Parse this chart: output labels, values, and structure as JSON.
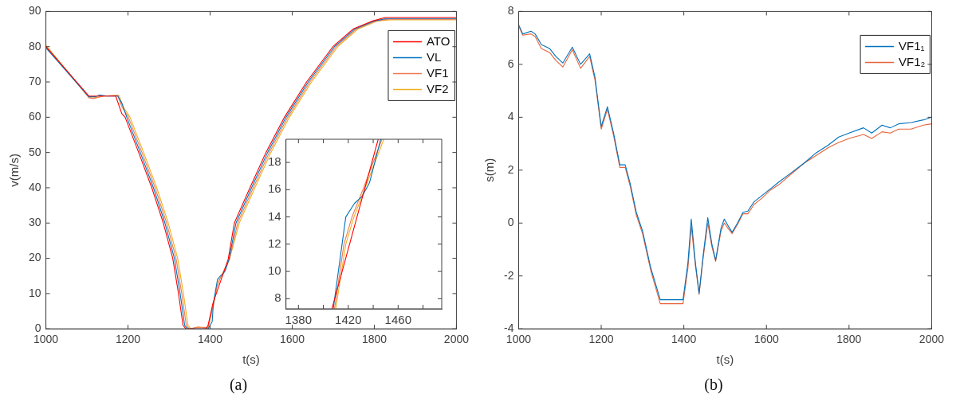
{
  "chart_data": [
    {
      "type": "line",
      "xlabel": "t(s)",
      "ylabel": "v(m/s)",
      "xlim": [
        1000,
        2000
      ],
      "xticks": [
        1000,
        1200,
        1400,
        1600,
        1800,
        2000
      ],
      "ylim": [
        0,
        90
      ],
      "yticks": [
        0,
        10,
        20,
        30,
        40,
        50,
        60,
        70,
        80,
        90
      ],
      "grid": false,
      "legend": "top right",
      "marker": "none",
      "line_style": "solid",
      "annotations": [
        "(a)"
      ],
      "series": [
        {
          "name": "ATO",
          "color": "#ff0000",
          "x": [
            1000,
            1105,
            1170,
            1185,
            1193,
            1226,
            1258,
            1286,
            1309,
            1323,
            1334,
            1341,
            1390,
            1395,
            1407,
            1444,
            1459,
            1497,
            1536,
            1581,
            1635,
            1699,
            1748,
            1796,
            1826,
            2000
          ],
          "values": [
            80,
            66,
            66,
            61,
            60,
            50,
            40,
            30,
            20,
            10,
            1,
            0,
            0,
            1,
            7.3,
            19.7,
            30,
            40,
            50,
            60,
            70,
            80,
            85,
            87.3,
            88.3,
            88.3
          ]
        },
        {
          "name": "VL",
          "color": "#0072bd",
          "x": [
            1000,
            1105,
            1120,
            1130,
            1150,
            1175,
            1185,
            1197,
            1230,
            1262,
            1290,
            1313,
            1327,
            1338,
            1345,
            1395,
            1405,
            1408,
            1415,
            1418,
            1425,
            1431,
            1437,
            1446,
            1463,
            1501,
            1540,
            1585,
            1639,
            1703,
            1752,
            1800,
            1830,
            2000
          ],
          "values": [
            79.7,
            65.8,
            65.8,
            66.3,
            66,
            66,
            64,
            60,
            50,
            40,
            30,
            20,
            10,
            1,
            0,
            0,
            2,
            7.3,
            12,
            14,
            15,
            15.5,
            16.5,
            19.7,
            30,
            40,
            50,
            60,
            70,
            80,
            85,
            87.3,
            88,
            88
          ]
        },
        {
          "name": "VF1",
          "color": "#f07850",
          "x": [
            1000,
            1105,
            1115,
            1140,
            1175,
            1185,
            1201,
            1234,
            1266,
            1294,
            1317,
            1331,
            1342,
            1349,
            1370,
            1395,
            1409,
            1416.5,
            1423,
            1431.7,
            1447,
            1467,
            1505,
            1544,
            1589,
            1643,
            1707,
            1756,
            1804,
            1834,
            2000
          ],
          "values": [
            80.2,
            65.5,
            65.3,
            66,
            66.2,
            63,
            60,
            50,
            40,
            30,
            20,
            10,
            1,
            0,
            0.5,
            0.3,
            7.3,
            12,
            14,
            16,
            19.7,
            30,
            40,
            50,
            60,
            70,
            80,
            85,
            87.3,
            87.8,
            87.8
          ]
        },
        {
          "name": "VF2",
          "color": "#edb120",
          "x": [
            1000,
            1105,
            1115,
            1140,
            1178,
            1188,
            1205,
            1238,
            1270,
            1298,
            1321,
            1335,
            1346,
            1353,
            1370,
            1395,
            1409,
            1416.5,
            1423,
            1431.7,
            1447,
            1471,
            1509,
            1548,
            1593,
            1647,
            1711,
            1760,
            1808,
            1838,
            2000
          ],
          "values": [
            80.4,
            65.6,
            65.4,
            66,
            66.2,
            63,
            60,
            50,
            40,
            30,
            20,
            10,
            1,
            0,
            0.5,
            0.3,
            7.3,
            12,
            14,
            16,
            19.7,
            30,
            40,
            50,
            60,
            70,
            80,
            85,
            87.3,
            87.6,
            87.6
          ]
        }
      ]
    },
    {
      "type": "line",
      "xlim": [
        1370,
        1495
      ],
      "xticks": [
        1380,
        {
          "value": 1400,
          "label": null
        },
        1420,
        {
          "value": 1440,
          "label": null
        },
        1460,
        {
          "value": 1480,
          "label": null
        }
      ],
      "ylim": [
        7.26,
        19.7
      ],
      "yticks": [
        8,
        10,
        12,
        14,
        16,
        18
      ],
      "grid": false,
      "marker": "none",
      "line_style": "solid",
      "series": [
        {
          "color": "#ff0000",
          "x": [
            1407,
            1444
          ],
          "values": [
            7.3,
            19.7
          ]
        },
        {
          "color": "#0072bd",
          "x": [
            1408,
            1415,
            1418,
            1425,
            1431,
            1437,
            1446
          ],
          "values": [
            7.3,
            12,
            14,
            15,
            15.5,
            16.5,
            19.7
          ]
        },
        {
          "color": "#f07850",
          "x": [
            1409,
            1416.5,
            1423,
            1431.7,
            1447
          ],
          "values": [
            7.3,
            12,
            14,
            16,
            19.7
          ]
        },
        {
          "color": "#edb120",
          "x": [
            1410,
            1418,
            1424.5,
            1433,
            1448.5
          ],
          "values": [
            7.3,
            12,
            14,
            16,
            19.7
          ]
        }
      ]
    },
    {
      "type": "line",
      "xlabel": "t(s)",
      "ylabel": "s(m)",
      "xlim": [
        1000,
        2000
      ],
      "xticks": [
        1000,
        1200,
        1400,
        1600,
        1800,
        2000
      ],
      "ylim": [
        -4,
        8
      ],
      "yticks": [
        -4,
        -2,
        0,
        2,
        4,
        6,
        8
      ],
      "grid": false,
      "legend": "top right",
      "marker": "none",
      "line_style": "solid",
      "annotations": [
        "(b)"
      ],
      "series": [
        {
          "name": "VF1₁",
          "color": "#0072bd",
          "x": [
            1000,
            1010,
            1030,
            1040,
            1055,
            1075,
            1090,
            1107,
            1130,
            1150,
            1172,
            1185,
            1200,
            1215,
            1230,
            1245,
            1258,
            1270,
            1285,
            1300,
            1320,
            1343,
            1398,
            1410,
            1418,
            1428,
            1437,
            1447,
            1458,
            1468,
            1477,
            1490,
            1498,
            1507,
            1517,
            1530,
            1543,
            1555,
            1570,
            1590,
            1610,
            1630,
            1660,
            1690,
            1720,
            1750,
            1775,
            1800,
            1835,
            1855,
            1880,
            1900,
            1920,
            1950,
            1980,
            2000
          ],
          "values": [
            7.5,
            7.15,
            7.25,
            7.15,
            6.75,
            6.6,
            6.3,
            6.05,
            6.65,
            6.0,
            6.4,
            5.5,
            3.65,
            4.4,
            3.4,
            2.2,
            2.2,
            1.5,
            0.4,
            -0.3,
            -1.7,
            -2.9,
            -2.9,
            -1.5,
            0.15,
            -1.5,
            -2.65,
            -1.2,
            0.2,
            -0.8,
            -1.4,
            -0.2,
            0.15,
            -0.1,
            -0.35,
            0.0,
            0.4,
            0.45,
            0.8,
            1.05,
            1.3,
            1.55,
            1.9,
            2.25,
            2.65,
            2.95,
            3.25,
            3.4,
            3.6,
            3.4,
            3.7,
            3.6,
            3.75,
            3.8,
            3.9,
            4.0
          ]
        },
        {
          "name": "VF1₂",
          "color": "#e8643c",
          "x": [
            1000,
            1010,
            1030,
            1040,
            1055,
            1075,
            1090,
            1107,
            1130,
            1150,
            1172,
            1185,
            1200,
            1215,
            1230,
            1245,
            1258,
            1270,
            1285,
            1300,
            1320,
            1343,
            1398,
            1410,
            1418,
            1428,
            1437,
            1447,
            1458,
            1468,
            1477,
            1490,
            1498,
            1507,
            1517,
            1530,
            1543,
            1555,
            1570,
            1590,
            1610,
            1630,
            1660,
            1690,
            1720,
            1750,
            1775,
            1800,
            1835,
            1855,
            1880,
            1900,
            1920,
            1950,
            1980,
            2000
          ],
          "values": [
            7.45,
            7.1,
            7.15,
            7.05,
            6.6,
            6.45,
            6.15,
            5.9,
            6.55,
            5.85,
            6.3,
            5.4,
            3.55,
            4.3,
            3.3,
            2.1,
            2.1,
            1.4,
            0.3,
            -0.4,
            -1.8,
            -3.05,
            -3.05,
            -1.7,
            -0.1,
            -1.6,
            -2.7,
            -1.3,
            0.0,
            -0.9,
            -1.45,
            -0.3,
            0.0,
            -0.2,
            -0.4,
            -0.05,
            0.35,
            0.35,
            0.7,
            0.95,
            1.25,
            1.45,
            1.85,
            2.25,
            2.55,
            2.85,
            3.05,
            3.2,
            3.35,
            3.2,
            3.45,
            3.4,
            3.55,
            3.55,
            3.7,
            3.75
          ]
        }
      ]
    }
  ]
}
